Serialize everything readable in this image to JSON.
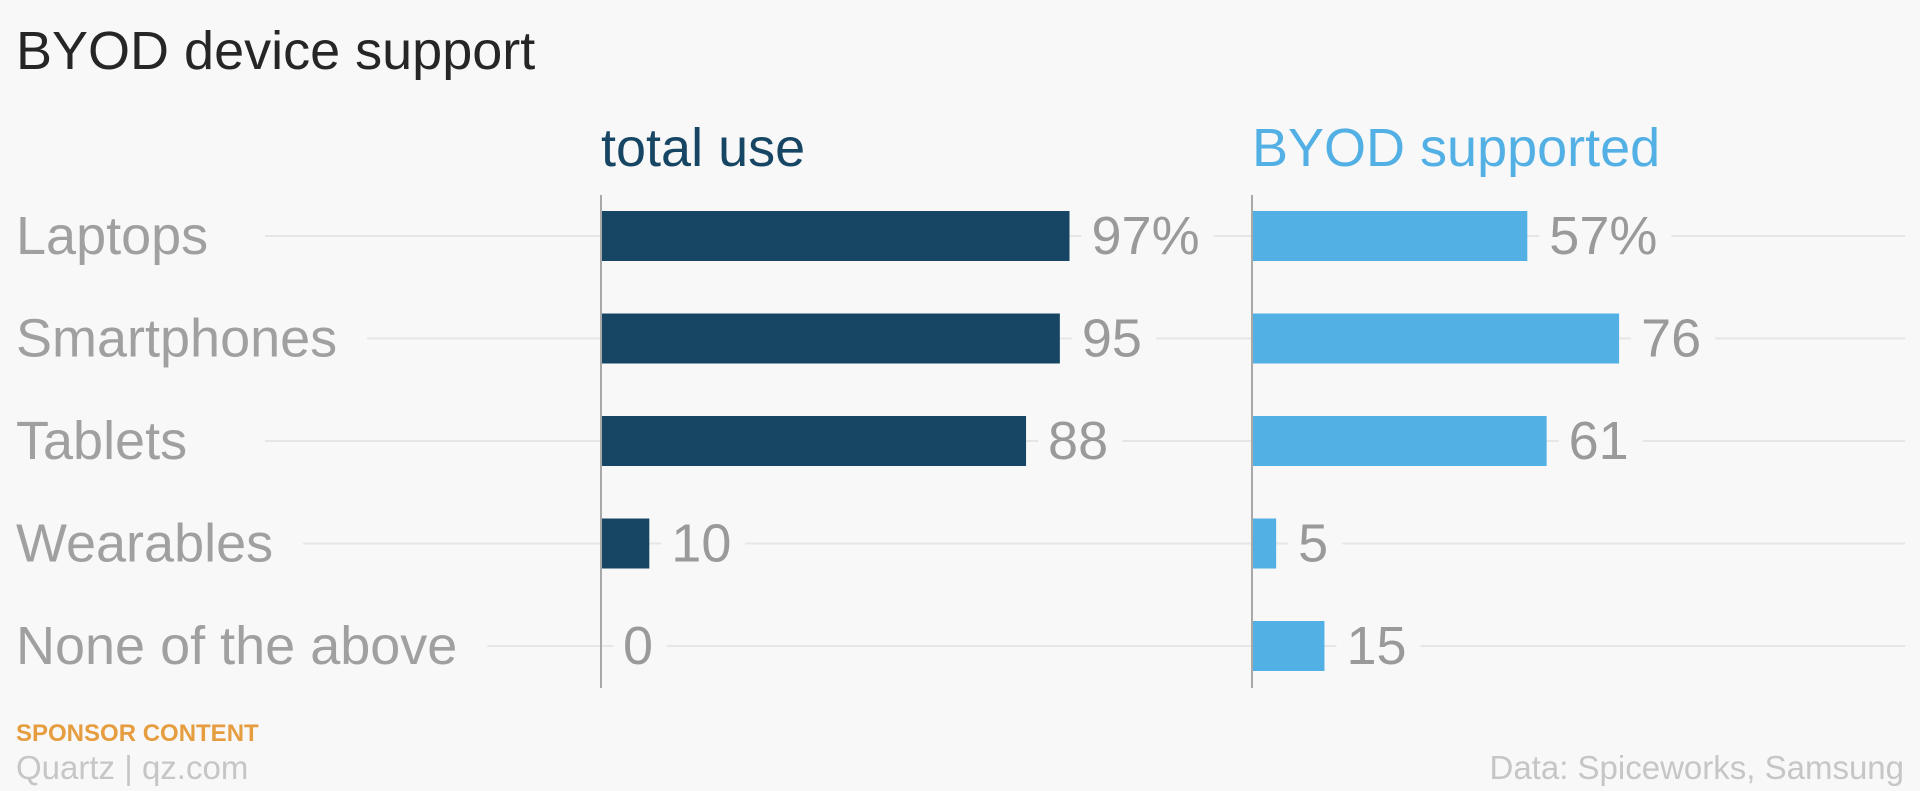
{
  "chart_data": {
    "type": "bar",
    "orientation": "horizontal",
    "title": "BYOD device support",
    "categories": [
      "Laptops",
      "Smartphones",
      "Tablets",
      "Wearables",
      "None of the above"
    ],
    "series": [
      {
        "name": "total use",
        "values": [
          97,
          95,
          88,
          10,
          0
        ],
        "value_labels": [
          "97%",
          "95",
          "88",
          "10",
          "0"
        ],
        "color": "#164664"
      },
      {
        "name": "BYOD supported",
        "values": [
          57,
          76,
          61,
          5,
          15
        ],
        "value_labels": [
          "57%",
          "76",
          "61",
          "5",
          "15"
        ],
        "color": "#53b0e4"
      }
    ],
    "xlim": [
      0,
      100
    ],
    "grid": true,
    "legend": "panel titles above each bar group"
  },
  "colors": {
    "category_label": "#a0a0a0",
    "value_label": "#9a9a9a",
    "gridline": "#e6e6e6",
    "axis": "#a8a8a8"
  },
  "footer": {
    "sponsor": "SPONSOR CONTENT",
    "credit": "Quartz | qz.com",
    "source": "Data: Spiceworks, Samsung"
  }
}
